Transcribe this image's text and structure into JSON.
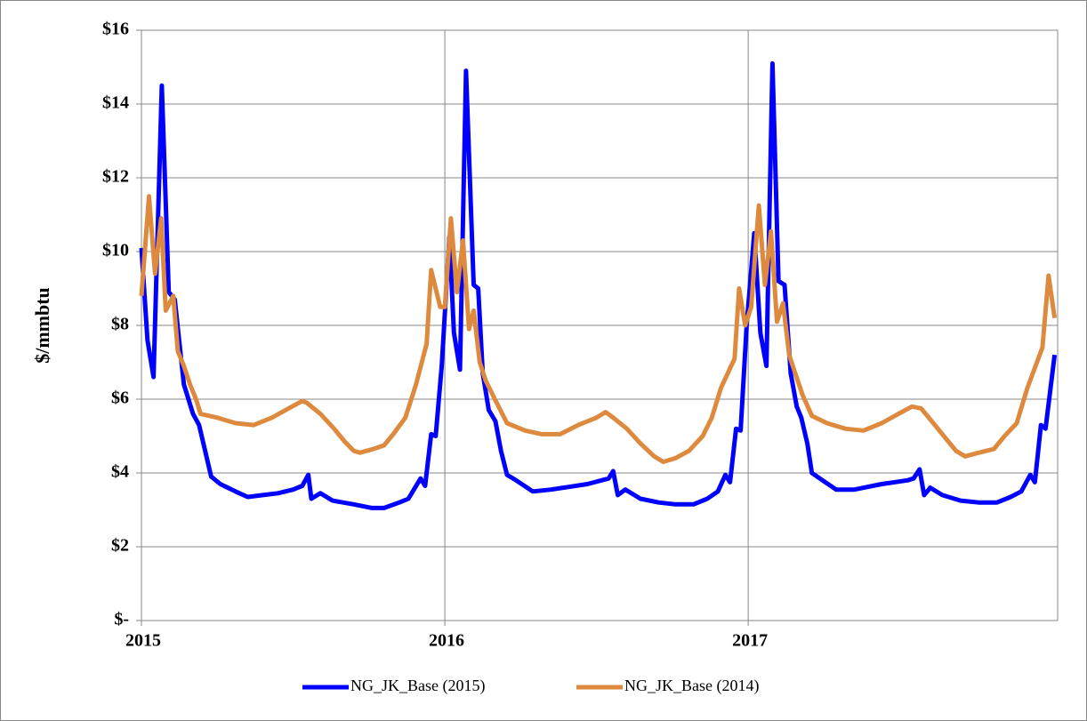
{
  "chart_data": {
    "type": "line",
    "ylabel": "$/mmbtu",
    "xlim": [
      2015,
      2018.02
    ],
    "xticks": [
      2015,
      2016,
      2017
    ],
    "ylim": [
      0,
      16
    ],
    "yticks": [
      {
        "value": 0,
        "label": "$-"
      },
      {
        "value": 2,
        "label": "$2"
      },
      {
        "value": 4,
        "label": "$4"
      },
      {
        "value": 6,
        "label": "$6"
      },
      {
        "value": 8,
        "label": "$8"
      },
      {
        "value": 10,
        "label": "$10"
      },
      {
        "value": 12,
        "label": "$12"
      },
      {
        "value": 14,
        "label": "$14"
      },
      {
        "value": 16,
        "label": "$16"
      }
    ],
    "grid": true,
    "legend": "bottom",
    "series": [
      {
        "name": "NG_JK_Base (2015)",
        "color": "#0000ff",
        "x": [
          2015.0,
          2015.02,
          2015.04,
          2015.067,
          2015.09,
          2015.11,
          2015.14,
          2015.17,
          2015.19,
          2015.21,
          2015.23,
          2015.26,
          2015.31,
          2015.35,
          2015.4,
          2015.45,
          2015.5,
          2015.53,
          2015.55,
          2015.56,
          2015.59,
          2015.63,
          2015.7,
          2015.76,
          2015.8,
          2015.85,
          2015.88,
          2015.92,
          2015.935,
          2015.955,
          2015.97,
          2015.99,
          2016.015,
          2016.03,
          2016.05,
          2016.07,
          2016.095,
          2016.11,
          2016.125,
          2016.145,
          2016.167,
          2016.185,
          2016.205,
          2016.235,
          2016.29,
          2016.35,
          2016.47,
          2016.54,
          2016.555,
          2016.57,
          2016.595,
          2016.645,
          2016.705,
          2016.76,
          2016.82,
          2016.865,
          2016.9,
          2016.925,
          2016.94,
          2016.96,
          2016.975,
          2016.995,
          2017.02,
          2017.04,
          2017.06,
          2017.08,
          2017.1,
          2017.12,
          2017.14,
          2017.16,
          2017.175,
          2017.195,
          2017.21,
          2017.245,
          2017.29,
          2017.35,
          2017.44,
          2017.525,
          2017.545,
          2017.565,
          2017.58,
          2017.6,
          2017.64,
          2017.7,
          2017.76,
          2017.82,
          2017.865,
          2017.9,
          2017.93,
          2017.945,
          2017.965,
          2017.98,
          2018.01
        ],
        "values": [
          10.1,
          7.6,
          6.6,
          14.5,
          8.9,
          8.7,
          6.4,
          5.6,
          5.3,
          4.6,
          3.9,
          3.7,
          3.5,
          3.35,
          3.4,
          3.45,
          3.55,
          3.65,
          3.95,
          3.3,
          3.45,
          3.25,
          3.15,
          3.05,
          3.05,
          3.2,
          3.3,
          3.85,
          3.65,
          5.05,
          5.0,
          6.9,
          10.4,
          7.8,
          6.8,
          14.9,
          9.1,
          9.0,
          6.7,
          5.7,
          5.4,
          4.6,
          3.95,
          3.8,
          3.5,
          3.55,
          3.7,
          3.85,
          4.05,
          3.4,
          3.55,
          3.3,
          3.2,
          3.15,
          3.15,
          3.3,
          3.5,
          3.95,
          3.75,
          5.2,
          5.15,
          8.0,
          10.5,
          7.8,
          6.9,
          15.1,
          9.2,
          9.1,
          6.7,
          5.8,
          5.5,
          4.8,
          4.0,
          3.8,
          3.55,
          3.55,
          3.7,
          3.8,
          3.85,
          4.1,
          3.4,
          3.6,
          3.4,
          3.25,
          3.2,
          3.2,
          3.35,
          3.5,
          3.95,
          3.75,
          5.3,
          5.2,
          7.2
        ]
      },
      {
        "name": "NG_JK_Base (2014)",
        "color": "#dd8a3e",
        "x": [
          2015.0,
          2015.025,
          2015.045,
          2015.065,
          2015.08,
          2015.105,
          2015.12,
          2015.14,
          2015.16,
          2015.18,
          2015.195,
          2015.25,
          2015.31,
          2015.37,
          2015.43,
          2015.485,
          2015.53,
          2015.545,
          2015.59,
          2015.635,
          2015.67,
          2015.7,
          2015.72,
          2015.765,
          2015.8,
          2015.83,
          2015.87,
          2015.905,
          2015.94,
          2015.955,
          2015.985,
          2016.0,
          2016.02,
          2016.04,
          2016.06,
          2016.08,
          2016.095,
          2016.115,
          2016.135,
          2016.165,
          2016.205,
          2016.265,
          2016.32,
          2016.38,
          2016.44,
          2016.5,
          2016.53,
          2016.555,
          2016.6,
          2016.645,
          2016.69,
          2016.72,
          2016.76,
          2016.805,
          2016.85,
          2016.88,
          2016.91,
          2016.955,
          2016.97,
          2016.99,
          2017.01,
          2017.035,
          2017.055,
          2017.075,
          2017.095,
          2017.115,
          2017.135,
          2017.155,
          2017.18,
          2017.21,
          2017.26,
          2017.32,
          2017.38,
          2017.44,
          2017.495,
          2017.54,
          2017.57,
          2017.605,
          2017.645,
          2017.685,
          2017.715,
          2017.76,
          2017.81,
          2017.845,
          2017.885,
          2017.92,
          2017.97,
          2017.99,
          2018.01
        ],
        "values": [
          8.8,
          11.5,
          9.4,
          10.9,
          8.4,
          8.8,
          7.3,
          6.9,
          6.4,
          6.0,
          5.6,
          5.5,
          5.35,
          5.3,
          5.5,
          5.75,
          5.95,
          5.9,
          5.6,
          5.2,
          4.85,
          4.6,
          4.55,
          4.65,
          4.75,
          5.05,
          5.5,
          6.4,
          7.5,
          9.5,
          8.5,
          8.5,
          10.9,
          8.9,
          10.3,
          7.9,
          8.4,
          7.0,
          6.5,
          6.0,
          5.35,
          5.15,
          5.05,
          5.05,
          5.3,
          5.5,
          5.65,
          5.5,
          5.2,
          4.8,
          4.45,
          4.3,
          4.4,
          4.6,
          5.0,
          5.5,
          6.3,
          7.1,
          9.0,
          8.0,
          8.5,
          11.25,
          9.1,
          10.55,
          8.1,
          8.6,
          7.2,
          6.7,
          6.1,
          5.55,
          5.35,
          5.2,
          5.15,
          5.35,
          5.6,
          5.8,
          5.75,
          5.4,
          5.0,
          4.6,
          4.45,
          4.55,
          4.65,
          5.0,
          5.35,
          6.3,
          7.4,
          9.35,
          8.2
        ]
      }
    ]
  }
}
